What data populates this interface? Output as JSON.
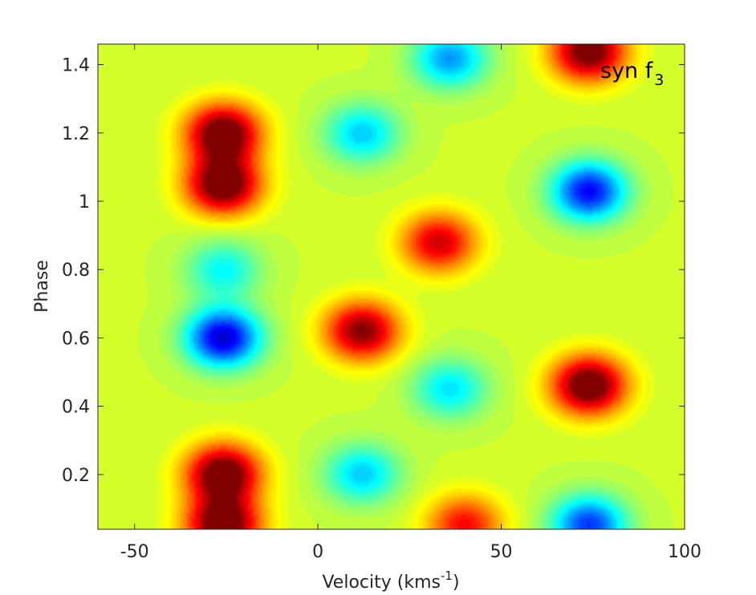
{
  "chart_data": {
    "type": "heatmap",
    "title": "",
    "xlabel": "Velocity (kms",
    "xlabel_sup": "-1",
    "xlabel_end": ")",
    "ylabel": "Phase",
    "xlim": [
      -60,
      100
    ],
    "ylim": [
      0.04,
      1.46
    ],
    "x_ticks": [
      -50,
      0,
      50,
      100
    ],
    "x_tick_labels": [
      "-50",
      "0",
      "50",
      "100"
    ],
    "y_ticks": [
      0.2,
      0.4,
      0.6,
      0.8,
      1.0,
      1.2,
      1.4
    ],
    "y_tick_labels": [
      "0.2",
      "0.4",
      "0.6",
      "0.8",
      "1",
      "1.2",
      "1.4"
    ],
    "annotation": {
      "main": "syn f",
      "sub": "3"
    },
    "colormap": "jet",
    "value_range": [
      -1,
      1
    ],
    "background_value": 0.15,
    "features": [
      {
        "kind": "max",
        "x": -26,
        "y": 0.05,
        "amp": 1.0
      },
      {
        "kind": "max",
        "x": -26,
        "y": 0.2,
        "amp": 1.0
      },
      {
        "kind": "max",
        "x": -26,
        "y": 1.05,
        "amp": 1.0
      },
      {
        "kind": "max",
        "x": -26,
        "y": 1.2,
        "amp": 1.0
      },
      {
        "kind": "min",
        "x": -26,
        "y": 0.6,
        "amp": -1.0
      },
      {
        "kind": "min",
        "x": -26,
        "y": 0.8,
        "amp": -0.4
      },
      {
        "kind": "max",
        "x": 12,
        "y": 0.62,
        "amp": 0.85
      },
      {
        "kind": "max",
        "x": 33,
        "y": 0.88,
        "amp": 0.7
      },
      {
        "kind": "max",
        "x": 40,
        "y": 0.05,
        "amp": 0.6
      },
      {
        "kind": "min",
        "x": 12,
        "y": 0.2,
        "amp": -0.5
      },
      {
        "kind": "min",
        "x": 36,
        "y": 0.45,
        "amp": -0.45
      },
      {
        "kind": "min",
        "x": 12,
        "y": 1.2,
        "amp": -0.5
      },
      {
        "kind": "min",
        "x": 36,
        "y": 1.42,
        "amp": -0.6
      },
      {
        "kind": "max",
        "x": 74,
        "y": 0.46,
        "amp": 1.0
      },
      {
        "kind": "max",
        "x": 74,
        "y": 1.44,
        "amp": 0.95
      },
      {
        "kind": "min",
        "x": 74,
        "y": 1.03,
        "amp": -0.9
      },
      {
        "kind": "min",
        "x": 74,
        "y": 0.05,
        "amp": -0.8
      }
    ]
  }
}
